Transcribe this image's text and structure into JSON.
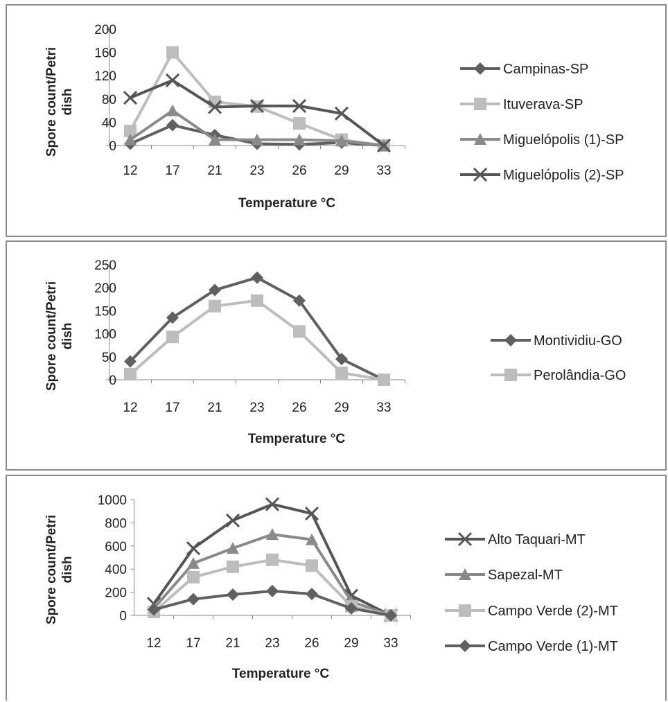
{
  "chart_data": [
    {
      "type": "line",
      "xlabel": "Temperature °C",
      "ylabel": "Spore count/Petri dish",
      "categories": [
        "12",
        "17",
        "21",
        "23",
        "26",
        "29",
        "33"
      ],
      "ylim": [
        0,
        200
      ],
      "yticks": [
        "200",
        "160",
        "120",
        "80",
        "40",
        "0"
      ],
      "legend_position": "right",
      "series": [
        {
          "name": "Campinas-SP",
          "values": [
            3,
            35,
            18,
            3,
            2,
            5,
            0
          ],
          "color": "#606060",
          "marker": "diamond"
        },
        {
          "name": "Ituverava-SP",
          "values": [
            25,
            160,
            75,
            67,
            38,
            10,
            0
          ],
          "color": "#bdbdbd",
          "marker": "square"
        },
        {
          "name": "Miguelópolis (1)-SP",
          "values": [
            10,
            60,
            10,
            10,
            10,
            8,
            0
          ],
          "color": "#8a8a8a",
          "marker": "triangle"
        },
        {
          "name": "Miguelópolis (2)-SP",
          "values": [
            82,
            112,
            66,
            68,
            68,
            55,
            0
          ],
          "color": "#555555",
          "marker": "x"
        }
      ]
    },
    {
      "type": "line",
      "xlabel": "Temperature °C",
      "ylabel": "Spore count/Petri dish",
      "categories": [
        "12",
        "17",
        "21",
        "23",
        "26",
        "29",
        "33"
      ],
      "ylim": [
        0,
        250
      ],
      "yticks": [
        "250",
        "200",
        "150",
        "100",
        "50",
        "0"
      ],
      "legend_position": "right",
      "series": [
        {
          "name": "Montividiu-GO",
          "values": [
            40,
            135,
            195,
            222,
            172,
            45,
            0
          ],
          "color": "#606060",
          "marker": "diamond"
        },
        {
          "name": "Perolândia-GO",
          "values": [
            12,
            93,
            160,
            172,
            105,
            15,
            0
          ],
          "color": "#bdbdbd",
          "marker": "square"
        }
      ]
    },
    {
      "type": "line",
      "xlabel": "Temperature °C",
      "ylabel": "Spore count/Petri dish",
      "categories": [
        "12",
        "17",
        "21",
        "23",
        "26",
        "29",
        "33"
      ],
      "ylim": [
        0,
        1000
      ],
      "yticks": [
        "1000",
        "800",
        "600",
        "400",
        "200",
        "0"
      ],
      "legend_position": "right",
      "series": [
        {
          "name": "Alto Taquari-MT",
          "values": [
            100,
            580,
            820,
            960,
            880,
            170,
            0
          ],
          "color": "#555555",
          "marker": "x"
        },
        {
          "name": "Sapezal-MT",
          "values": [
            60,
            450,
            580,
            700,
            655,
            120,
            0
          ],
          "color": "#8a8a8a",
          "marker": "triangle"
        },
        {
          "name": "Campo Verde (2)-MT",
          "values": [
            30,
            330,
            420,
            480,
            430,
            80,
            0
          ],
          "color": "#bdbdbd",
          "marker": "square"
        },
        {
          "name": "Campo Verde (1)-MT",
          "values": [
            50,
            140,
            180,
            210,
            185,
            60,
            0
          ],
          "color": "#606060",
          "marker": "diamond"
        }
      ]
    }
  ]
}
